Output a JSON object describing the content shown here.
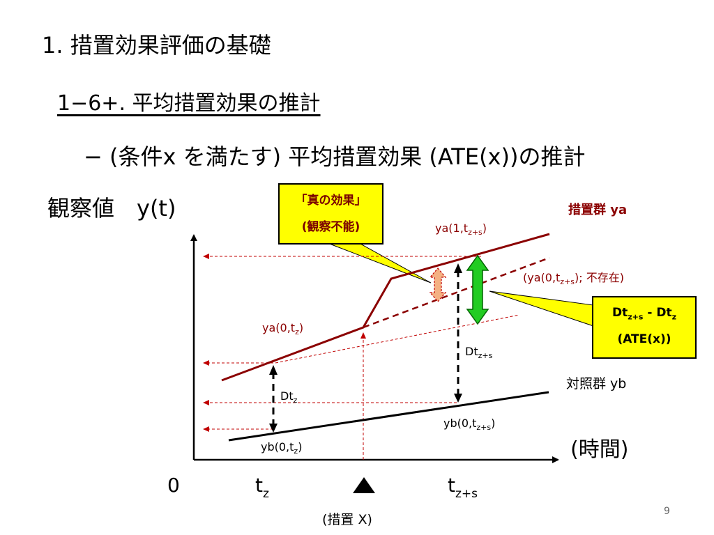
{
  "slide": {
    "title": "1. 措置効果評価の基礎",
    "subtitle": "1−6+. 平均措置効果の推計",
    "bullet": "− (条件x を満たす) 平均措置効果 (ATE(x))の推計",
    "page_number": "9"
  },
  "axes": {
    "y_title": "観察値　y(t)",
    "x_title": "(時間)",
    "origin": "0",
    "tz_main": "t",
    "tz_sub": "z",
    "tzs_main": "t",
    "tzs_sub": "z+s",
    "treatment_label": "(措置 X)"
  },
  "groups": {
    "treated": "措置群 ya",
    "control": "対照群 yb"
  },
  "callouts": {
    "true_effect_line1": "「真の効果」",
    "true_effect_line2": "(観察不能)",
    "ate_line1_main": "Dt",
    "ate_line1_sub": "z+s",
    "ate_line1_mid": " - Dt",
    "ate_line1_sub2": "z",
    "ate_line2": "(ATE(x))"
  },
  "point_labels": {
    "ya1_main": "ya(1,t",
    "ya1_sub": "z+s",
    "ya1_end": ")",
    "ya0_cf_main": "(ya(0,t",
    "ya0_cf_sub": "z+s",
    "ya0_cf_end": "); 不存在)",
    "ya0_tz_main": "ya(0,t",
    "ya0_tz_sub": "z",
    "ya0_tz_end": ")",
    "yb_tz_main": "yb(0,t",
    "yb_tz_sub": "z",
    "yb_tz_end": ")",
    "yb_tzs_main": "yb(0,t",
    "yb_tzs_sub": "z+s",
    "yb_tzs_end": ")",
    "dtz_main": "Dt",
    "dtz_sub": "z",
    "dtzs_main": "Dt",
    "dtzs_sub": "z+s"
  },
  "colors": {
    "treated_line": "#8b0000",
    "control_line": "#000000",
    "guide_line": "#c00000",
    "callout_bg": "#ffff00",
    "true_effect_arrow": "#f4b183",
    "ate_arrow": "#22cc22"
  }
}
